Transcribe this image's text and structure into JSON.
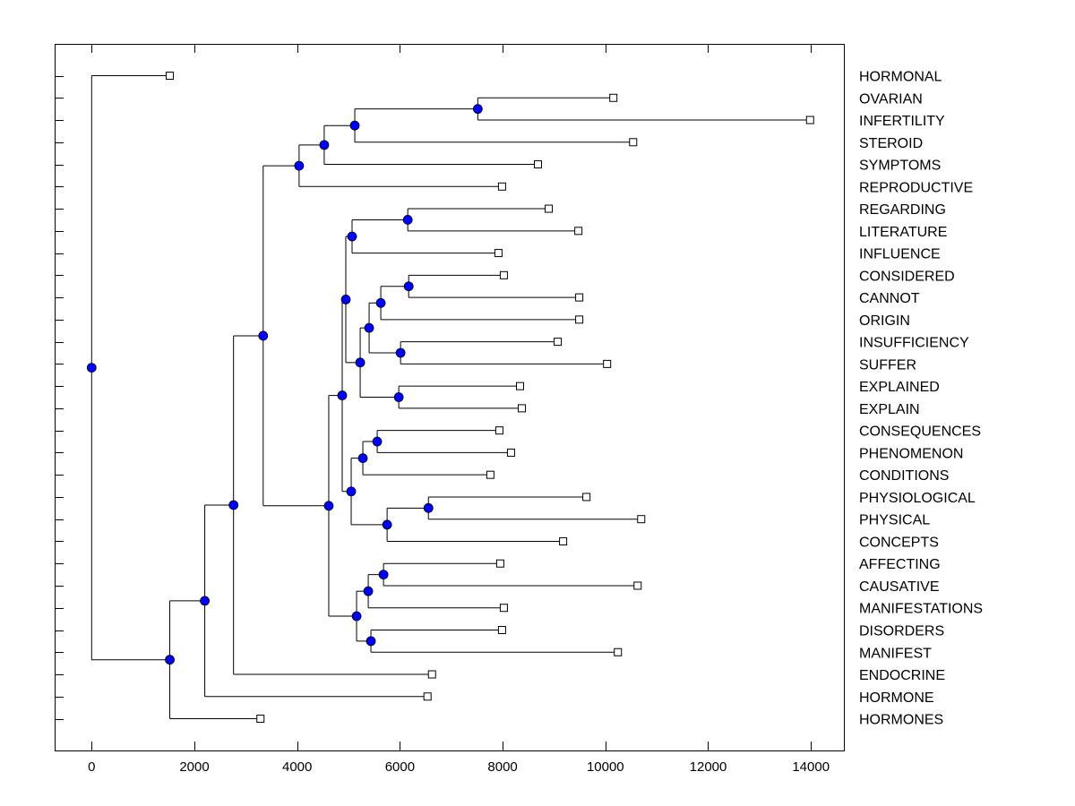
{
  "chart_data": {
    "type": "dendrogram",
    "title": "",
    "xlabel": "",
    "ylabel": "",
    "xlim": [
      -700,
      14700
    ],
    "xticks": [
      0,
      2000,
      4000,
      6000,
      8000,
      10000,
      12000,
      14000
    ],
    "xtick_labels": [
      "0",
      "2000",
      "4000",
      "6000",
      "8000",
      "10000",
      "12000",
      "14000"
    ],
    "node_color": "#0000ff",
    "leaf_order": [
      "HORMONAL",
      "OVARIAN",
      "INFERTILITY",
      "STEROID",
      "SYMPTOMS",
      "REPRODUCTIVE",
      "REGARDING",
      "LITERATURE",
      "INFLUENCE",
      "CONSIDERED",
      "CANNOT",
      "ORIGIN",
      "INSUFFICIENCY",
      "SUFFER",
      "EXPLAINED",
      "EXPLAIN",
      "CONSEQUENCES",
      "PHENOMENON",
      "CONDITIONS",
      "PHYSIOLOGICAL",
      "PHYSICAL",
      "CONCEPTS",
      "AFFECTING",
      "CAUSATIVE",
      "MANIFESTATIONS",
      "DISORDERS",
      "MANIFEST",
      "ENDOCRINE",
      "HORMONE",
      "HORMONES"
    ],
    "tree": {
      "h": 0,
      "children": [
        {
          "leaf": "HORMONAL",
          "h": 1521
        },
        {
          "h": 1521,
          "children": [
            {
              "h": 2202,
              "children": [
                {
                  "h": 2762,
                  "children": [
                    {
                      "h": 3339,
                      "children": [
                        {
                          "h": 4038,
                          "children": [
                            {
                              "h": 4527,
                              "children": [
                                {
                                  "h": 5122,
                                  "children": [
                                    {
                                      "h": 7516,
                                      "children": [
                                        {
                                          "leaf": "OVARIAN",
                                          "h": 10155
                                        },
                                        {
                                          "leaf": "INFERTILITY",
                                          "h": 13984
                                        }
                                      ]
                                    },
                                    {
                                      "leaf": "STEROID",
                                      "h": 10540
                                    }
                                  ]
                                },
                                {
                                  "leaf": "SYMPTOMS",
                                  "h": 8687
                                }
                              ]
                            },
                            {
                              "leaf": "REPRODUCTIVE",
                              "h": 7988
                            }
                          ]
                        },
                        {
                          "h": 4615,
                          "children": [
                            {
                              "h": 4877,
                              "children": [
                                {
                                  "h": 4947,
                                  "children": [
                                    {
                                      "h": 5069,
                                      "children": [
                                        {
                                          "h": 6153,
                                          "children": [
                                            {
                                              "leaf": "REGARDING",
                                              "h": 8897
                                            },
                                            {
                                              "leaf": "LITERATURE",
                                              "h": 9474
                                            }
                                          ]
                                        },
                                        {
                                          "leaf": "INFLUENCE",
                                          "h": 7918
                                        }
                                      ]
                                    },
                                    {
                                      "h": 5227,
                                      "children": [
                                        {
                                          "h": 5401,
                                          "children": [
                                            {
                                              "h": 5628,
                                              "children": [
                                                {
                                                  "h": 6171,
                                                  "children": [
                                                    {
                                                      "leaf": "CONSIDERED",
                                                      "h": 8023
                                                    },
                                                    {
                                                      "leaf": "CANNOT",
                                                      "h": 9491
                                                    }
                                                  ]
                                                },
                                                {
                                                  "leaf": "ORIGIN",
                                                  "h": 9491
                                                }
                                              ]
                                            },
                                            {
                                              "h": 6013,
                                              "children": [
                                                {
                                                  "leaf": "INSUFFICIENCY",
                                                  "h": 9072
                                                },
                                                {
                                                  "leaf": "SUFFER",
                                                  "h": 10033
                                                }
                                              ]
                                            }
                                          ]
                                        },
                                        {
                                          "h": 5978,
                                          "children": [
                                            {
                                              "leaf": "EXPLAINED",
                                              "h": 8338
                                            },
                                            {
                                              "leaf": "EXPLAIN",
                                              "h": 8373
                                            }
                                          ]
                                        }
                                      ]
                                    }
                                  ]
                                },
                                {
                                  "h": 5052,
                                  "children": [
                                    {
                                      "h": 5279,
                                      "children": [
                                        {
                                          "h": 5558,
                                          "children": [
                                            {
                                              "leaf": "CONSEQUENCES",
                                              "h": 7936
                                            },
                                            {
                                              "leaf": "PHENOMENON",
                                              "h": 8163
                                            }
                                          ]
                                        },
                                        {
                                          "leaf": "CONDITIONS",
                                          "h": 7761
                                        }
                                      ]
                                    },
                                    {
                                      "h": 5751,
                                      "children": [
                                        {
                                          "h": 6555,
                                          "children": [
                                            {
                                              "leaf": "PHYSIOLOGICAL",
                                              "h": 9631
                                            },
                                            {
                                              "leaf": "PHYSICAL",
                                              "h": 10697
                                            }
                                          ]
                                        },
                                        {
                                          "leaf": "CONCEPTS",
                                          "h": 9177
                                        }
                                      ]
                                    }
                                  ]
                                }
                              ]
                            },
                            {
                              "h": 5157,
                              "children": [
                                {
                                  "h": 5384,
                                  "children": [
                                    {
                                      "h": 5681,
                                      "children": [
                                        {
                                          "leaf": "AFFECTING",
                                          "h": 7953
                                        },
                                        {
                                          "leaf": "CAUSATIVE",
                                          "h": 10627
                                        }
                                      ]
                                    },
                                    {
                                      "leaf": "MANIFESTATIONS",
                                      "h": 8023
                                    }
                                  ]
                                },
                                {
                                  "h": 5436,
                                  "children": [
                                    {
                                      "leaf": "DISORDERS",
                                      "h": 7988
                                    },
                                    {
                                      "leaf": "MANIFEST",
                                      "h": 10243
                                    }
                                  ]
                                }
                              ]
                            }
                          ]
                        }
                      ]
                    },
                    {
                      "leaf": "ENDOCRINE",
                      "h": 6625
                    }
                  ]
                },
                {
                  "leaf": "HORMONE",
                  "h": 6537
                }
              ]
            },
            {
              "leaf": "HORMONES",
              "h": 3286
            }
          ]
        }
      ]
    }
  }
}
